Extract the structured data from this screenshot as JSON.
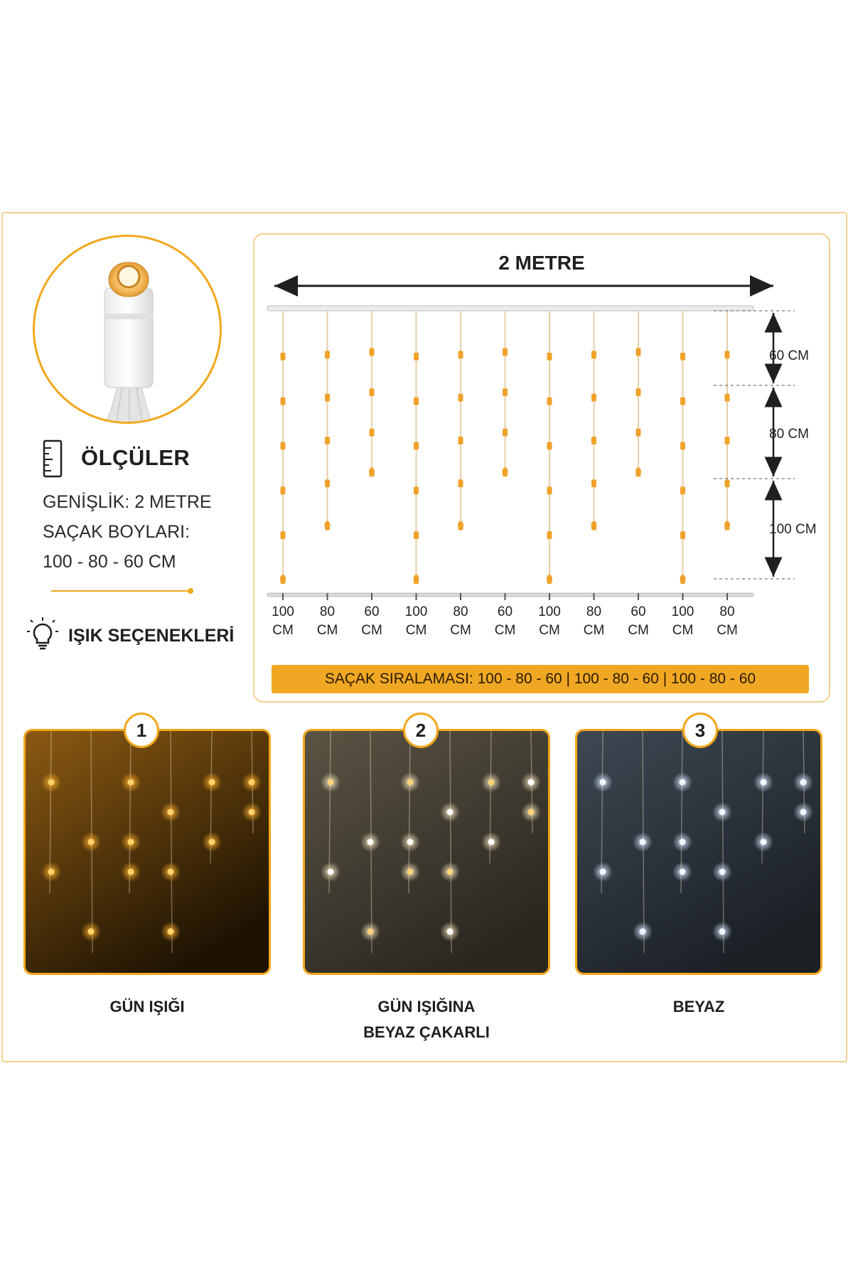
{
  "specs": {
    "title": "ÖLÇÜLER",
    "width_line": "GENİŞLİK: 2 METRE",
    "lengths_label": "SAÇAK BOYLARI:",
    "lengths_value": "100 - 80 - 60 CM",
    "icon": "ruler-icon"
  },
  "lights": {
    "title": "IŞIK SEÇENEKLERİ",
    "icon": "bulb-icon"
  },
  "diagram": {
    "width_label": "2 METRE",
    "length_labels": [
      "60 CM",
      "80 CM",
      "100 CM"
    ],
    "strand_lengths_cm": [
      100,
      80,
      60,
      100,
      80,
      60,
      100,
      80,
      60,
      100,
      80
    ],
    "column_labels": [
      {
        "value": "100",
        "unit": "CM"
      },
      {
        "value": "80",
        "unit": "CM"
      },
      {
        "value": "60",
        "unit": "CM"
      },
      {
        "value": "100",
        "unit": "CM"
      },
      {
        "value": "80",
        "unit": "CM"
      },
      {
        "value": "60",
        "unit": "CM"
      },
      {
        "value": "100",
        "unit": "CM"
      },
      {
        "value": "80",
        "unit": "CM"
      },
      {
        "value": "60",
        "unit": "CM"
      },
      {
        "value": "100",
        "unit": "CM"
      },
      {
        "value": "80",
        "unit": "CM"
      }
    ],
    "order_label": "SAÇAK SIRALAMASI: 100 - 80 - 60  |  100 - 80 - 60  |  100 - 80 - 60"
  },
  "options": [
    {
      "number": "1",
      "caption": "GÜN IŞIĞI",
      "caption2": ""
    },
    {
      "number": "2",
      "caption": "GÜN IŞIĞINA",
      "caption2": "BEYAZ ÇAKARLI"
    },
    {
      "number": "3",
      "caption": "BEYAZ",
      "caption2": ""
    }
  ],
  "colors": {
    "accent": "#f2a71a",
    "warm_light": "#ffd36b",
    "cool_light": "#eef6ff",
    "bulb": "#f0a22a"
  }
}
